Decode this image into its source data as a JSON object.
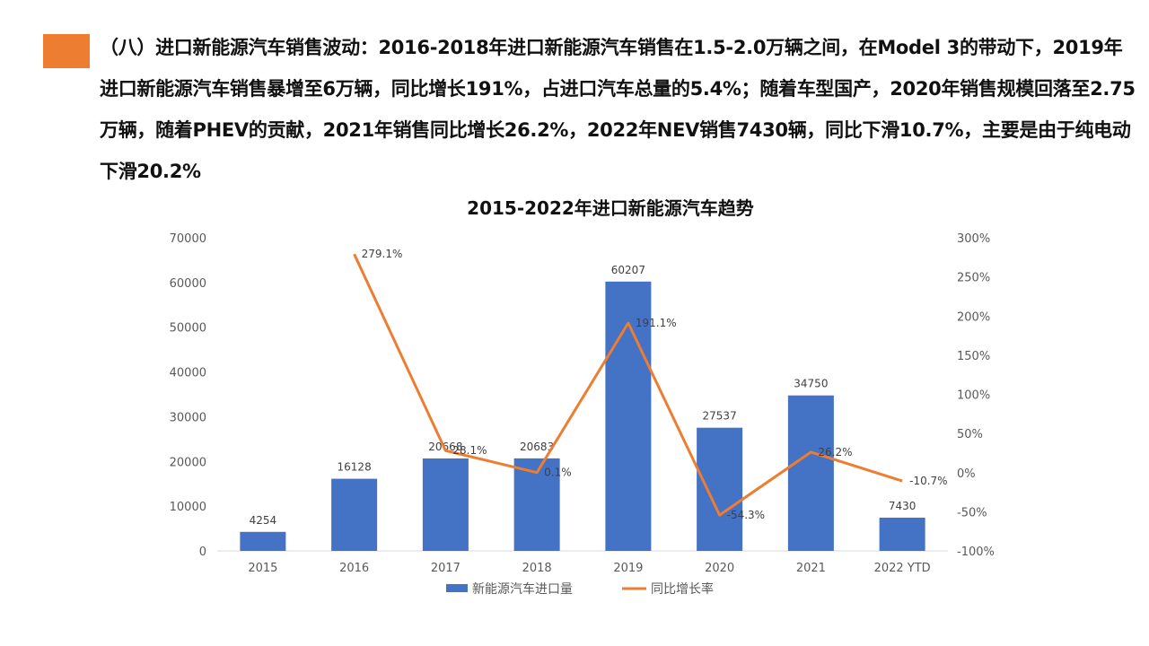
{
  "headline": "（八）进口新能源汽车销售波动：2016-2018年进口新能源汽车销售在1.5-2.0万辆之间，在Model 3的带动下，2019年进口新能源汽车销售暴增至6万辆，同比增长191%，占进口汽车总量的5.4%；随着车型国产，2020年销售规模回落至2.75万辆，随着PHEV的贡献，2021年销售同比增长26.2%，2022年NEV销售7430辆，同比下滑10.7%，主要是由于纯电动下滑20.2%",
  "colors": {
    "accent": "#ED7D31",
    "bar": "#4472C4",
    "line": "#ED7D31"
  },
  "chart_data": {
    "type": "bar",
    "title": "2015-2022年进口新能源汽车趋势",
    "categories": [
      "2015",
      "2016",
      "2017",
      "2018",
      "2019",
      "2020",
      "2021",
      "2022 YTD"
    ],
    "series": [
      {
        "name": "新能源汽车进口量",
        "type": "bar",
        "axis": "left",
        "values": [
          4254,
          16128,
          20668,
          20683,
          60207,
          27537,
          34750,
          7430
        ],
        "labels": [
          "4254",
          "16128",
          "20668",
          "20683",
          "60207",
          "27537",
          "34750",
          "7430"
        ]
      },
      {
        "name": "同比增长率",
        "type": "line",
        "axis": "right",
        "values": [
          null,
          279.1,
          28.1,
          0.1,
          191.1,
          -54.3,
          26.2,
          -10.7
        ],
        "labels": [
          null,
          "279.1%",
          "28.1%",
          "0.1%",
          "191.1%",
          "-54.3%",
          "26.2%",
          "-10.7%"
        ]
      }
    ],
    "y_left": {
      "ylim": [
        0,
        70000
      ],
      "ticks": [
        "0",
        "10000",
        "20000",
        "30000",
        "40000",
        "50000",
        "60000",
        "70000"
      ]
    },
    "y_right": {
      "ylim": [
        -100,
        300
      ],
      "ticks": [
        "-100%",
        "-50%",
        "0%",
        "50%",
        "100%",
        "150%",
        "200%",
        "250%",
        "300%"
      ]
    },
    "grid": false,
    "legend": "bottom"
  }
}
